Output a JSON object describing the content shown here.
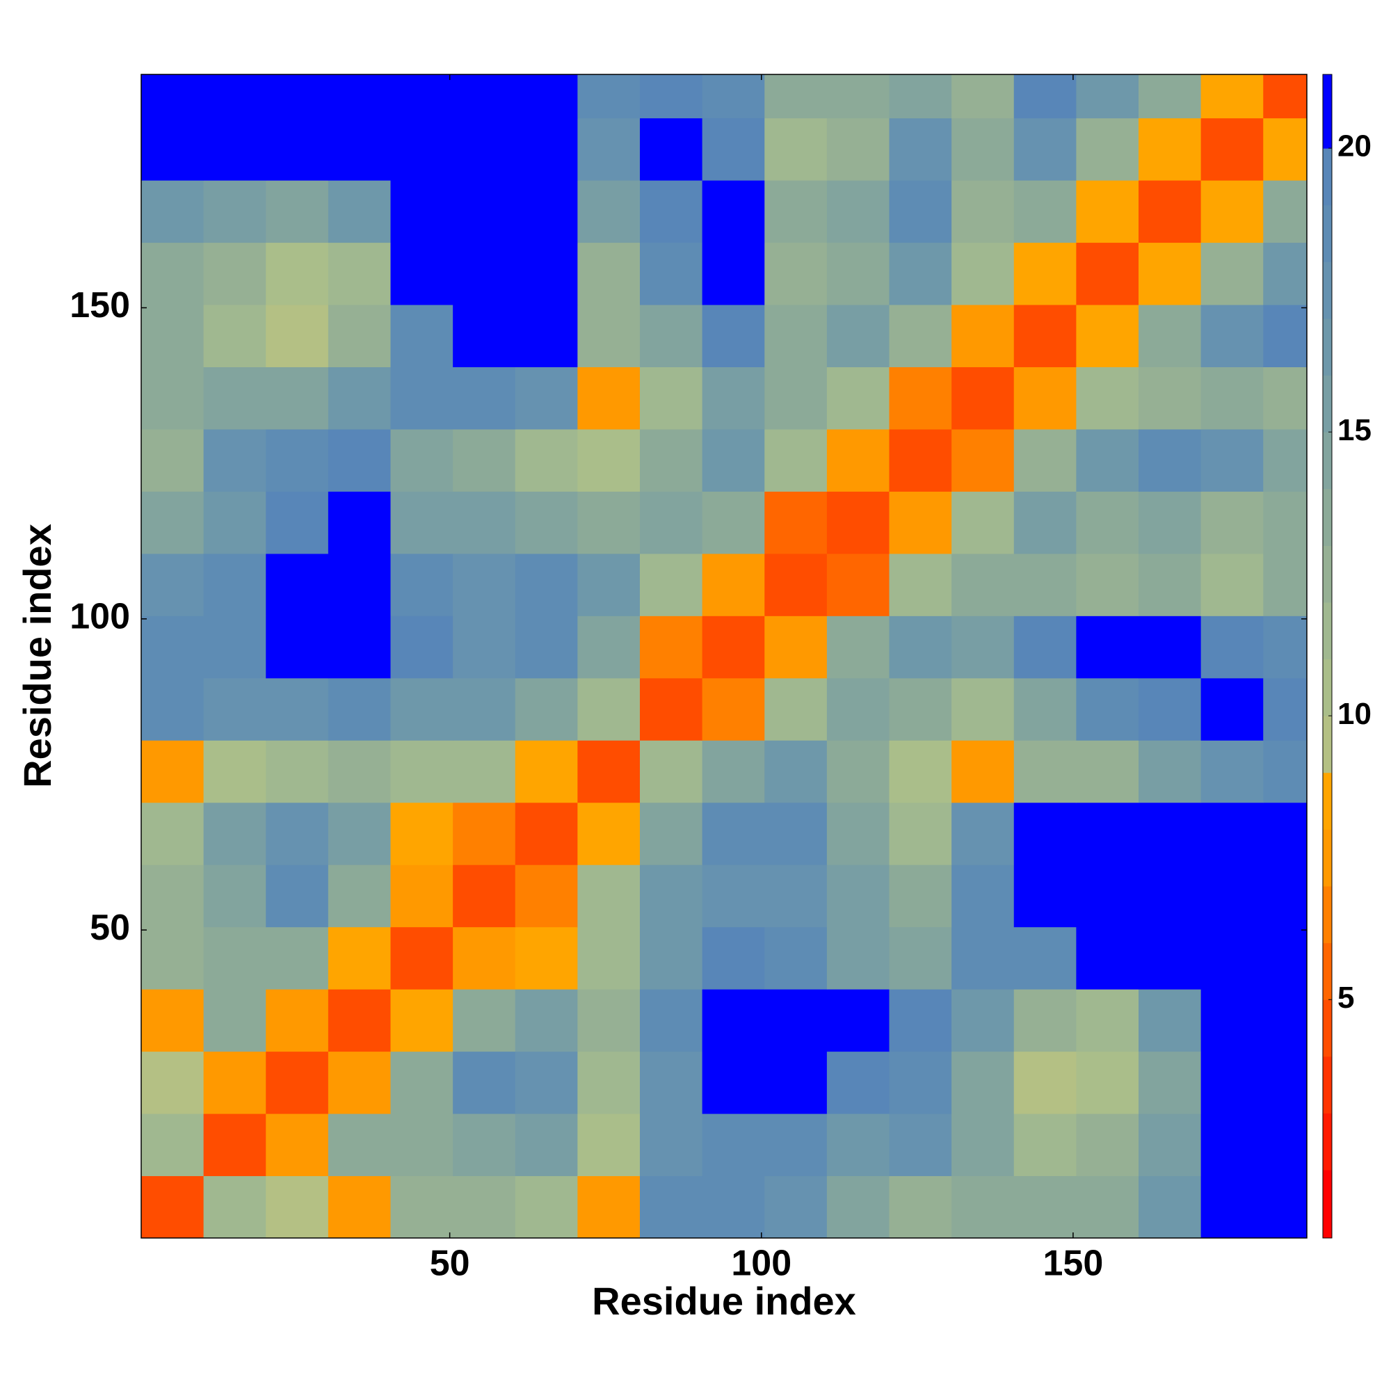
{
  "chart_data": {
    "type": "heatmap",
    "x_label": "Residue index",
    "y_label": "Residue index",
    "xbins": [
      0.5,
      10.5,
      20.5,
      30.5,
      40.5,
      50.5,
      60.5,
      70.5,
      80.5,
      90.5,
      100.5,
      110.5,
      120.5,
      130.5,
      140.5,
      150.5,
      160.5,
      170.5,
      180.5,
      187.5
    ],
    "ybins": [
      0.5,
      10.5,
      20.5,
      30.5,
      40.5,
      50.5,
      60.5,
      70.5,
      80.5,
      90.5,
      100.5,
      110.5,
      120.5,
      130.5,
      140.5,
      150.5,
      160.5,
      170.5,
      180.5,
      187.5
    ],
    "z": [
      [
        5,
        12,
        10,
        8,
        13,
        13,
        12,
        8,
        19,
        19,
        18,
        15,
        13,
        14,
        14,
        14,
        17,
        21,
        21
      ],
      [
        12,
        5,
        8,
        14,
        14,
        15,
        16,
        11,
        18,
        19,
        19,
        17,
        18,
        15,
        12,
        13,
        16,
        21,
        21
      ],
      [
        10,
        8,
        5,
        8,
        14,
        19,
        18,
        12,
        18,
        21,
        21,
        20,
        19,
        15,
        10,
        11,
        15,
        21,
        21
      ],
      [
        8,
        14,
        8,
        5,
        9,
        14,
        16,
        13,
        19,
        21,
        21,
        21,
        20,
        17,
        13,
        12,
        17,
        21,
        21
      ],
      [
        13,
        14,
        14,
        9,
        5,
        8,
        9,
        12,
        17,
        20,
        19,
        16,
        15,
        19,
        19,
        21,
        21,
        21,
        21
      ],
      [
        13,
        15,
        19,
        14,
        8,
        5,
        7,
        12,
        17,
        18,
        18,
        16,
        14,
        19,
        21,
        21,
        21,
        21,
        21
      ],
      [
        12,
        16,
        18,
        16,
        9,
        7,
        5,
        9,
        15,
        19,
        19,
        15,
        12,
        18,
        21,
        21,
        21,
        21,
        21
      ],
      [
        8,
        11,
        12,
        13,
        12,
        12,
        9,
        5,
        12,
        15,
        17,
        14,
        11,
        8,
        13,
        13,
        16,
        18,
        19
      ],
      [
        19,
        18,
        18,
        19,
        17,
        17,
        15,
        12,
        5,
        7,
        12,
        15,
        14,
        12,
        15,
        19,
        20,
        21,
        20
      ],
      [
        19,
        19,
        21,
        21,
        20,
        18,
        19,
        15,
        7,
        5,
        8,
        14,
        17,
        16,
        20,
        21,
        21,
        20,
        19
      ],
      [
        18,
        19,
        21,
        21,
        19,
        18,
        19,
        17,
        12,
        8,
        5,
        6,
        12,
        14,
        14,
        13,
        14,
        12,
        14
      ],
      [
        15,
        17,
        20,
        21,
        16,
        16,
        15,
        14,
        15,
        14,
        6,
        5,
        8,
        12,
        16,
        14,
        15,
        13,
        14
      ],
      [
        13,
        18,
        19,
        20,
        15,
        14,
        12,
        11,
        14,
        17,
        12,
        8,
        5,
        7,
        13,
        17,
        19,
        18,
        15
      ],
      [
        14,
        15,
        15,
        17,
        19,
        19,
        18,
        8,
        12,
        16,
        14,
        12,
        7,
        5,
        8,
        12,
        13,
        14,
        13
      ],
      [
        14,
        12,
        10,
        13,
        19,
        21,
        21,
        13,
        15,
        20,
        14,
        16,
        13,
        8,
        5,
        9,
        14,
        18,
        20
      ],
      [
        14,
        13,
        11,
        12,
        21,
        21,
        21,
        13,
        19,
        21,
        13,
        14,
        17,
        12,
        9,
        5,
        9,
        13,
        17
      ],
      [
        17,
        16,
        15,
        17,
        21,
        21,
        21,
        16,
        20,
        21,
        14,
        15,
        19,
        13,
        14,
        9,
        5,
        9,
        14
      ],
      [
        21,
        21,
        21,
        21,
        21,
        21,
        21,
        18,
        21,
        20,
        12,
        13,
        18,
        14,
        18,
        13,
        9,
        5,
        9
      ],
      [
        21,
        21,
        21,
        21,
        21,
        21,
        21,
        19,
        20,
        19,
        14,
        14,
        15,
        13,
        20,
        17,
        14,
        9,
        5
      ]
    ],
    "xlim": [
      0.5,
      187.5
    ],
    "ylim": [
      0.5,
      187.5
    ],
    "xticks": [
      50,
      100,
      150
    ],
    "yticks": [
      50,
      100,
      150
    ],
    "colorbar": {
      "bounds": [
        0.8,
        2,
        3,
        4,
        5,
        6,
        7,
        8,
        9,
        10,
        11,
        12,
        13,
        14,
        15,
        16,
        17,
        18,
        19,
        20,
        21.3
      ],
      "colors": [
        "#ff0000",
        "#ff1a00",
        "#ff3300",
        "#ff4d00",
        "#ff6600",
        "#ff8000",
        "#ff9900",
        "#ffa500",
        "#b4c084",
        "#aabe8a",
        "#a0b890",
        "#96b094",
        "#8caa98",
        "#82a49e",
        "#789ea4",
        "#6e98aa",
        "#6692b0",
        "#5e8cb4",
        "#5886b8",
        "#0000ff"
      ],
      "ticks": [
        5,
        10,
        15,
        20
      ]
    }
  }
}
